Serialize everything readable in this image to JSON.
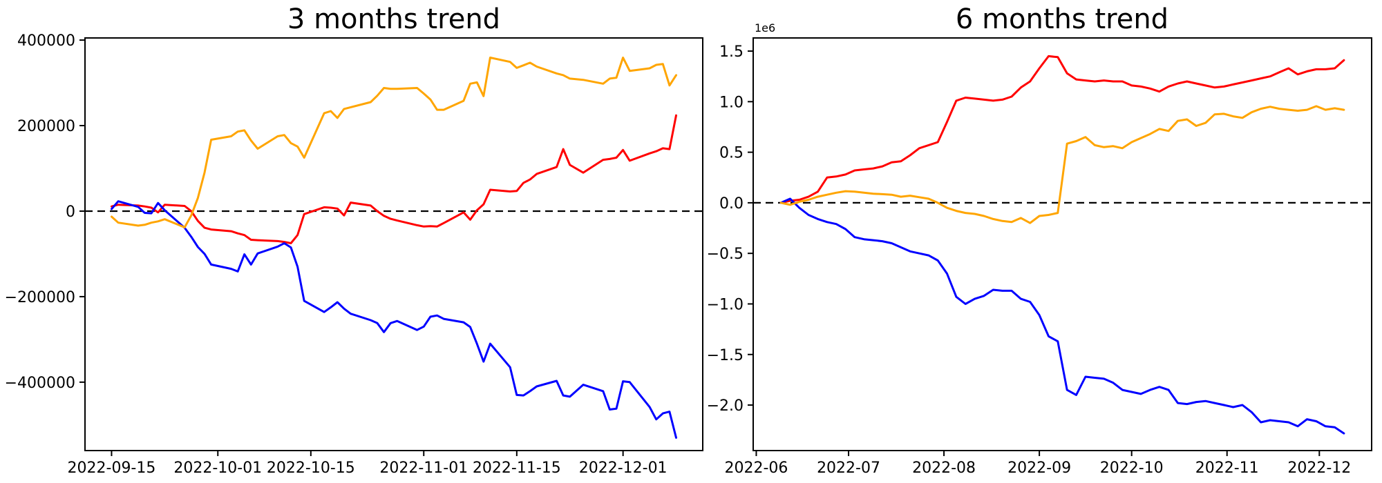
{
  "figure": {
    "background": "#ffffff",
    "axis_color": "#000000",
    "zero_line_color": "#000000"
  },
  "chart_data": [
    {
      "type": "line",
      "title": "3 months trend",
      "grid": false,
      "legend": null,
      "zero_line": true,
      "xlim": [
        "2022-09-11",
        "2022-12-13"
      ],
      "ylim": [
        -560000,
        405000
      ],
      "yticks": [
        {
          "value": 400000,
          "label": "400000"
        },
        {
          "value": 200000,
          "label": "200000"
        },
        {
          "value": 0,
          "label": "0"
        },
        {
          "value": -200000,
          "label": "−200000"
        },
        {
          "value": -400000,
          "label": "−400000"
        }
      ],
      "xticks": [
        {
          "date": "2022-09-15",
          "label": "2022-09-15"
        },
        {
          "date": "2022-10-01",
          "label": "2022-10-01"
        },
        {
          "date": "2022-10-15",
          "label": "2022-10-15"
        },
        {
          "date": "2022-11-01",
          "label": "2022-11-01"
        },
        {
          "date": "2022-11-15",
          "label": "2022-11-15"
        },
        {
          "date": "2022-12-01",
          "label": "2022-12-01"
        }
      ],
      "x": [
        "2022-09-15",
        "2022-09-16",
        "2022-09-19",
        "2022-09-20",
        "2022-09-21",
        "2022-09-22",
        "2022-09-23",
        "2022-09-26",
        "2022-09-27",
        "2022-09-28",
        "2022-09-29",
        "2022-09-30",
        "2022-10-03",
        "2022-10-04",
        "2022-10-05",
        "2022-10-06",
        "2022-10-07",
        "2022-10-10",
        "2022-10-11",
        "2022-10-12",
        "2022-10-13",
        "2022-10-14",
        "2022-10-17",
        "2022-10-18",
        "2022-10-19",
        "2022-10-20",
        "2022-10-21",
        "2022-10-24",
        "2022-10-25",
        "2022-10-26",
        "2022-10-27",
        "2022-10-28",
        "2022-10-31",
        "2022-11-01",
        "2022-11-02",
        "2022-11-03",
        "2022-11-04",
        "2022-11-07",
        "2022-11-08",
        "2022-11-09",
        "2022-11-10",
        "2022-11-11",
        "2022-11-14",
        "2022-11-15",
        "2022-11-16",
        "2022-11-17",
        "2022-11-18",
        "2022-11-21",
        "2022-11-22",
        "2022-11-23",
        "2022-11-25",
        "2022-11-28",
        "2022-11-29",
        "2022-11-30",
        "2022-12-01",
        "2022-12-02",
        "2022-12-05",
        "2022-12-06",
        "2022-12-07",
        "2022-12-08",
        "2022-12-09"
      ],
      "series": [
        {
          "name": "red-series",
          "color": "#ff0000",
          "values": [
            11000,
            15000,
            13000,
            11000,
            8000,
            -3000,
            15000,
            12000,
            0,
            -23000,
            -39000,
            -43000,
            -47000,
            -52000,
            -56000,
            -67000,
            -68000,
            -70000,
            -72000,
            -75000,
            -56000,
            -7000,
            9000,
            8000,
            6000,
            -10000,
            20000,
            13000,
            0,
            -11000,
            -18000,
            -22000,
            -33000,
            -36000,
            -35000,
            -36000,
            -28000,
            -3000,
            -20000,
            2000,
            16000,
            50000,
            46000,
            47000,
            66000,
            74000,
            87000,
            103000,
            145000,
            108000,
            90000,
            120000,
            122000,
            125000,
            143000,
            118000,
            135000,
            140000,
            147000,
            145000,
            224000
          ]
        },
        {
          "name": "blue-series",
          "color": "#0000ff",
          "values": [
            5000,
            23000,
            10000,
            -4000,
            -5000,
            19000,
            2000,
            -39000,
            -60000,
            -84000,
            -100000,
            -125000,
            -135000,
            -141000,
            -101000,
            -125000,
            -99000,
            -83000,
            -75000,
            -85000,
            -130000,
            -210000,
            -236000,
            -225000,
            -213000,
            -228000,
            -240000,
            -255000,
            -262000,
            -283000,
            -262000,
            -257000,
            -278000,
            -270000,
            -247000,
            -244000,
            -252000,
            -260000,
            -271000,
            -310000,
            -352000,
            -310000,
            -365000,
            -430000,
            -431000,
            -421000,
            -410000,
            -397000,
            -431000,
            -434000,
            -406000,
            -421000,
            -464000,
            -462000,
            -398000,
            -400000,
            -458000,
            -487000,
            -473000,
            -469000,
            -530000
          ]
        },
        {
          "name": "orange-series",
          "color": "#ffa500",
          "values": [
            -13000,
            -27000,
            -34000,
            -32000,
            -27000,
            -24000,
            -19000,
            -38000,
            -10000,
            31000,
            90000,
            167000,
            175000,
            186000,
            189000,
            165000,
            146000,
            175000,
            178000,
            159000,
            151000,
            125000,
            229000,
            234000,
            218000,
            239000,
            243000,
            255000,
            270000,
            288000,
            286000,
            286000,
            288000,
            275000,
            261000,
            237000,
            237000,
            258000,
            298000,
            301000,
            269000,
            359000,
            349000,
            335000,
            341000,
            347000,
            338000,
            322000,
            318000,
            310000,
            307000,
            298000,
            310000,
            312000,
            359000,
            328000,
            334000,
            342000,
            344000,
            294000,
            318000
          ]
        }
      ]
    },
    {
      "type": "line",
      "title": "6 months trend",
      "grid": false,
      "legend": null,
      "zero_line": true,
      "y_offset_label": "1e6",
      "xlim": [
        "2022-05-31",
        "2022-12-18"
      ],
      "ylim": [
        -2.45,
        1.63
      ],
      "yticks": [
        {
          "value": 1.5,
          "label": "1.5"
        },
        {
          "value": 1.0,
          "label": "1.0"
        },
        {
          "value": 0.5,
          "label": "0.5"
        },
        {
          "value": 0.0,
          "label": "0.0"
        },
        {
          "value": -0.5,
          "label": "−0.5"
        },
        {
          "value": -1.0,
          "label": "−1.0"
        },
        {
          "value": -1.5,
          "label": "−1.5"
        },
        {
          "value": -2.0,
          "label": "−2.0"
        }
      ],
      "xticks": [
        {
          "date": "2022-06-01",
          "label": "2022-06"
        },
        {
          "date": "2022-07-01",
          "label": "2022-07"
        },
        {
          "date": "2022-08-01",
          "label": "2022-08"
        },
        {
          "date": "2022-09-01",
          "label": "2022-09"
        },
        {
          "date": "2022-10-01",
          "label": "2022-10"
        },
        {
          "date": "2022-11-01",
          "label": "2022-11"
        },
        {
          "date": "2022-12-01",
          "label": "2022-12"
        }
      ],
      "x": [
        "2022-06-09",
        "2022-06-12",
        "2022-06-15",
        "2022-06-18",
        "2022-06-21",
        "2022-06-24",
        "2022-06-27",
        "2022-06-30",
        "2022-07-03",
        "2022-07-06",
        "2022-07-09",
        "2022-07-12",
        "2022-07-15",
        "2022-07-18",
        "2022-07-21",
        "2022-07-24",
        "2022-07-27",
        "2022-07-30",
        "2022-08-02",
        "2022-08-05",
        "2022-08-08",
        "2022-08-11",
        "2022-08-14",
        "2022-08-17",
        "2022-08-20",
        "2022-08-23",
        "2022-08-26",
        "2022-08-29",
        "2022-09-01",
        "2022-09-04",
        "2022-09-07",
        "2022-09-10",
        "2022-09-13",
        "2022-09-16",
        "2022-09-19",
        "2022-09-22",
        "2022-09-25",
        "2022-09-28",
        "2022-10-01",
        "2022-10-04",
        "2022-10-07",
        "2022-10-10",
        "2022-10-13",
        "2022-10-16",
        "2022-10-19",
        "2022-10-22",
        "2022-10-25",
        "2022-10-28",
        "2022-10-31",
        "2022-11-03",
        "2022-11-06",
        "2022-11-09",
        "2022-11-12",
        "2022-11-15",
        "2022-11-18",
        "2022-11-21",
        "2022-11-24",
        "2022-11-27",
        "2022-11-30",
        "2022-12-03",
        "2022-12-06",
        "2022-12-09"
      ],
      "series": [
        {
          "name": "red-series",
          "color": "#ff0000",
          "values": [
            0.0,
            0.02,
            0.03,
            0.06,
            0.11,
            0.25,
            0.26,
            0.28,
            0.32,
            0.33,
            0.34,
            0.36,
            0.4,
            0.41,
            0.47,
            0.54,
            0.57,
            0.6,
            0.8,
            1.01,
            1.04,
            1.03,
            1.02,
            1.01,
            1.02,
            1.05,
            1.14,
            1.2,
            1.33,
            1.45,
            1.44,
            1.28,
            1.22,
            1.21,
            1.2,
            1.21,
            1.2,
            1.2,
            1.16,
            1.15,
            1.13,
            1.1,
            1.15,
            1.18,
            1.2,
            1.18,
            1.16,
            1.14,
            1.15,
            1.17,
            1.19,
            1.21,
            1.23,
            1.25,
            1.29,
            1.33,
            1.27,
            1.3,
            1.32,
            1.32,
            1.33,
            1.41
          ]
        },
        {
          "name": "blue-series",
          "color": "#0000ff",
          "values": [
            0.0,
            0.04,
            -0.05,
            -0.12,
            -0.16,
            -0.19,
            -0.21,
            -0.26,
            -0.34,
            -0.36,
            -0.37,
            -0.38,
            -0.4,
            -0.44,
            -0.48,
            -0.5,
            -0.52,
            -0.57,
            -0.7,
            -0.93,
            -1.0,
            -0.95,
            -0.92,
            -0.86,
            -0.87,
            -0.87,
            -0.95,
            -0.98,
            -1.11,
            -1.32,
            -1.37,
            -1.85,
            -1.9,
            -1.72,
            -1.73,
            -1.74,
            -1.78,
            -1.85,
            -1.87,
            -1.89,
            -1.85,
            -1.82,
            -1.85,
            -1.98,
            -1.99,
            -1.97,
            -1.96,
            -1.98,
            -2.0,
            -2.02,
            -2.0,
            -2.07,
            -2.17,
            -2.15,
            -2.16,
            -2.17,
            -2.21,
            -2.14,
            -2.16,
            -2.21,
            -2.22,
            -2.28
          ]
        },
        {
          "name": "orange-series",
          "color": "#ffa500",
          "values": [
            0.0,
            -0.02,
            0.01,
            0.03,
            0.06,
            0.08,
            0.1,
            0.115,
            0.11,
            0.1,
            0.09,
            0.085,
            0.08,
            0.06,
            0.07,
            0.055,
            0.04,
            0.0,
            -0.05,
            -0.08,
            -0.1,
            -0.11,
            -0.13,
            -0.16,
            -0.18,
            -0.19,
            -0.15,
            -0.2,
            -0.13,
            -0.12,
            -0.1,
            0.585,
            0.61,
            0.65,
            0.57,
            0.55,
            0.56,
            0.54,
            0.6,
            0.64,
            0.68,
            0.73,
            0.71,
            0.81,
            0.825,
            0.76,
            0.79,
            0.875,
            0.88,
            0.855,
            0.84,
            0.895,
            0.93,
            0.95,
            0.93,
            0.92,
            0.91,
            0.92,
            0.955,
            0.92,
            0.935,
            0.92
          ]
        }
      ]
    }
  ]
}
